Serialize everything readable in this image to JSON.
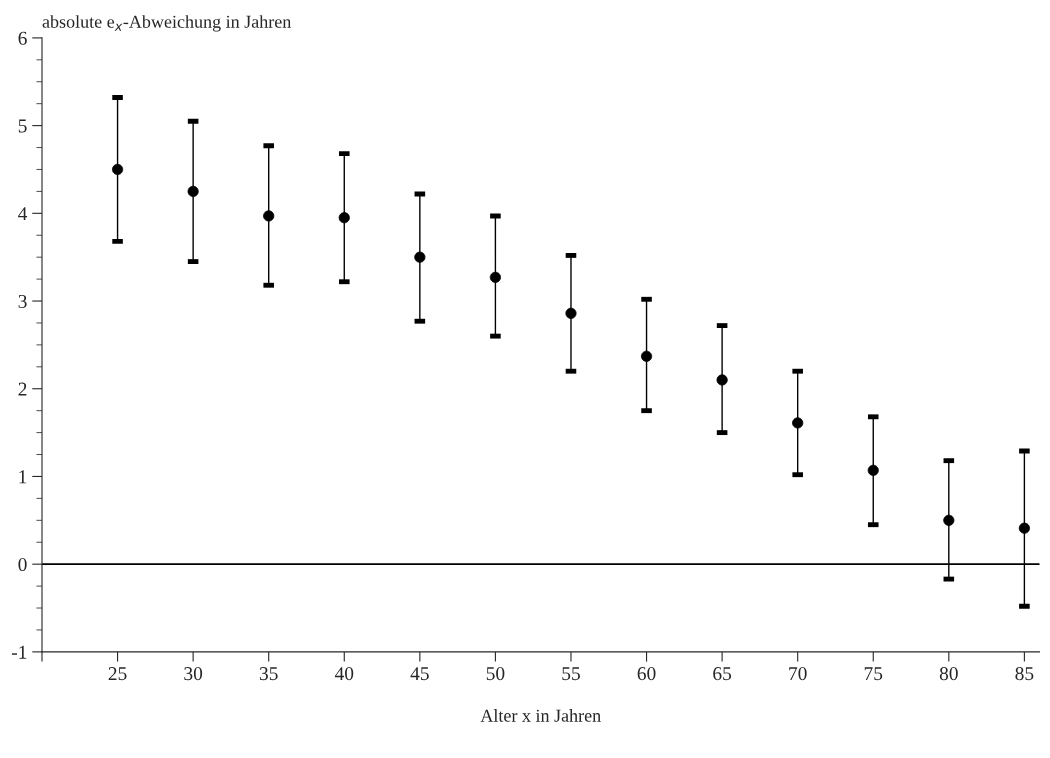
{
  "chart_data": {
    "type": "scatter",
    "ylabel": "absolute e$_{x}$-Abweichung in Jahren",
    "xlabel": "Alter x in Jahren",
    "x": [
      25,
      30,
      35,
      40,
      45,
      50,
      55,
      60,
      65,
      70,
      75,
      80,
      85
    ],
    "values": [
      4.5,
      4.25,
      3.97,
      3.95,
      3.5,
      3.27,
      2.86,
      2.37,
      2.1,
      1.61,
      1.07,
      0.5,
      0.41
    ],
    "errors": [
      [
        3.68,
        5.32
      ],
      [
        3.45,
        5.05
      ],
      [
        3.18,
        4.77
      ],
      [
        3.22,
        4.68
      ],
      [
        2.77,
        4.22
      ],
      [
        2.6,
        3.97
      ],
      [
        2.2,
        3.52
      ],
      [
        1.75,
        3.02
      ],
      [
        1.5,
        2.72
      ],
      [
        1.02,
        2.2
      ],
      [
        0.45,
        1.68
      ],
      [
        -0.17,
        1.18
      ],
      [
        -0.48,
        1.29
      ]
    ],
    "color": "#000000",
    "marker": "circle",
    "xlim": [
      20,
      86
    ],
    "xticks": [
      {
        "value": 20,
        "label": null
      },
      25,
      30,
      35,
      40,
      45,
      50,
      55,
      60,
      65,
      70,
      75,
      80,
      85
    ],
    "ylim": [
      -1,
      6
    ],
    "yticks": [
      -1,
      0,
      1,
      2,
      3,
      4,
      5,
      6
    ],
    "ref_lines": [
      {
        "axis": "y",
        "value": 0,
        "color": "#000000"
      }
    ],
    "grid": false,
    "legend": false
  }
}
